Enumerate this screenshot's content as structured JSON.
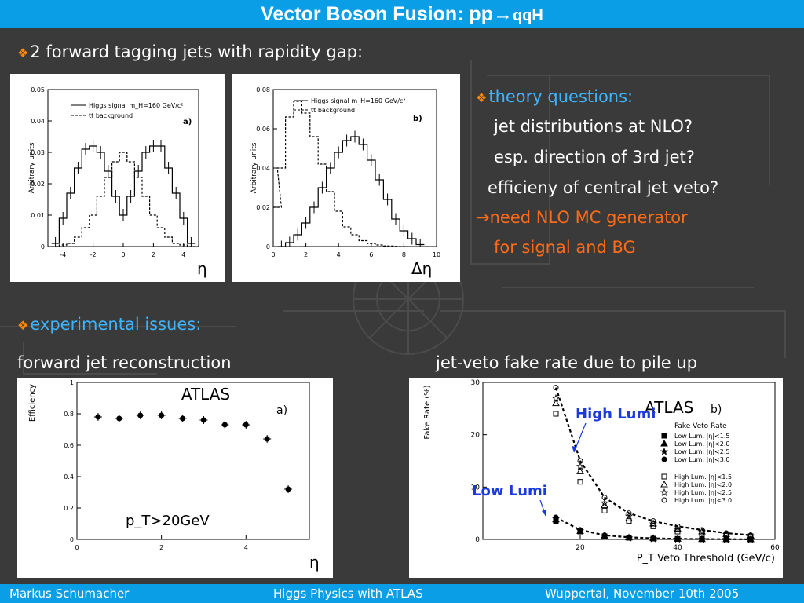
{
  "slide": {
    "title_main": "Vector Boson Fusion: pp",
    "title_arrow": "→",
    "title_suffix": "qqH",
    "bullet_1": "2 forward tagging jets with rapidity gap:",
    "theory": {
      "heading": "theory questions:",
      "lines": [
        "jet distributions at NLO?",
        "esp. direction of 3rd jet?",
        "efficieny of central jet veto?"
      ],
      "arrow": "→",
      "need_line_1": "need NLO MC generator",
      "need_line_2": "for signal and BG"
    },
    "experimental": {
      "heading": "experimental issues:",
      "left_caption": "forward jet reconstruction",
      "right_caption": "jet-veto fake rate due to pile up"
    },
    "footer": {
      "author": "Markus  Schumacher",
      "talk": "Higgs Physics  with ATLAS",
      "place_date": "Wuppertal, November 10th 2005"
    },
    "colors": {
      "title_bar": "#0a9ee6",
      "heading_blue": "#3cb4ff",
      "highlight_orange": "#ff6a18",
      "background": "#3a3a3a"
    }
  },
  "chart_data": [
    {
      "type": "line",
      "panel_label": "a)",
      "legend": [
        "Higgs signal m_H=160 GeV/c²",
        "tt background"
      ],
      "xlabel": "η",
      "ylabel": "Arbitrary units",
      "xlim": [
        -5,
        5
      ],
      "ylim": [
        0,
        0.05
      ],
      "x_ticks": [
        "-4",
        "-2",
        "0",
        "2",
        "4"
      ],
      "y_ticks": [
        "0",
        "0.01",
        "0.02",
        "0.03",
        "0.04",
        "0.05"
      ],
      "series": [
        {
          "name": "Higgs signal m_H=160 GeV/c²",
          "style": "solid",
          "x": [
            -4.5,
            -4.0,
            -3.5,
            -3.0,
            -2.5,
            -2.0,
            -1.5,
            -1.0,
            -0.5,
            0.0,
            0.5,
            1.0,
            1.5,
            2.0,
            2.5,
            3.0,
            3.5,
            4.0,
            4.5
          ],
          "y": [
            0.001,
            0.009,
            0.017,
            0.025,
            0.031,
            0.032,
            0.03,
            0.024,
            0.016,
            0.01,
            0.016,
            0.024,
            0.03,
            0.032,
            0.032,
            0.025,
            0.017,
            0.009,
            0.001
          ]
        },
        {
          "name": "tt background",
          "style": "dashed",
          "x": [
            -4.5,
            -4.0,
            -3.5,
            -3.0,
            -2.5,
            -2.0,
            -1.5,
            -1.0,
            -0.5,
            0.0,
            0.5,
            1.0,
            1.5,
            2.0,
            2.5,
            3.0,
            3.5,
            4.0,
            4.5
          ],
          "y": [
            0.0,
            0.0005,
            0.001,
            0.003,
            0.006,
            0.01,
            0.016,
            0.022,
            0.027,
            0.03,
            0.027,
            0.022,
            0.016,
            0.01,
            0.006,
            0.003,
            0.001,
            0.0005,
            0.0
          ]
        }
      ]
    },
    {
      "type": "line",
      "panel_label": "b)",
      "legend": [
        "Higgs signal m_H=160 GeV/c²",
        "tt background"
      ],
      "xlabel": "Δη",
      "ylabel": "Arbitrary units",
      "xlim": [
        0,
        10
      ],
      "ylim": [
        0,
        0.08
      ],
      "x_ticks": [
        "0",
        "2",
        "4",
        "6",
        "8",
        "10"
      ],
      "y_ticks": [
        "0",
        "0.02",
        "0.04",
        "0.06",
        "0.08"
      ],
      "series": [
        {
          "name": "Higgs signal m_H=160 GeV/c²",
          "style": "solid",
          "x": [
            0.5,
            1.0,
            1.5,
            2.0,
            2.5,
            3.0,
            3.5,
            4.0,
            4.5,
            5.0,
            5.5,
            6.0,
            6.5,
            7.0,
            7.5,
            8.0,
            8.5,
            9.0
          ],
          "y": [
            0.0,
            0.002,
            0.006,
            0.012,
            0.02,
            0.03,
            0.04,
            0.048,
            0.054,
            0.056,
            0.052,
            0.044,
            0.034,
            0.024,
            0.014,
            0.008,
            0.004,
            0.001
          ]
        },
        {
          "name": "tt background",
          "style": "dashed",
          "x": [
            0.25,
            0.5,
            1.0,
            1.5,
            2.0,
            2.5,
            3.0,
            3.5,
            4.0,
            4.5,
            5.0,
            5.5,
            6.0,
            6.5,
            7.0,
            8.0
          ],
          "y": [
            0.02,
            0.04,
            0.066,
            0.074,
            0.068,
            0.056,
            0.042,
            0.028,
            0.018,
            0.01,
            0.006,
            0.003,
            0.0015,
            0.0008,
            0.0003,
            0.0
          ]
        }
      ]
    },
    {
      "type": "scatter",
      "title": "ATLAS",
      "panel_label": "a)",
      "annotation": "p_T>20GeV",
      "xlabel": "η",
      "ylabel": "Efficiency",
      "xlim": [
        0,
        5.5
      ],
      "ylim": [
        0,
        1
      ],
      "x_ticks": [
        "0",
        "2",
        "4"
      ],
      "y_ticks": [
        "0",
        "0.2",
        "0.4",
        "0.6",
        "0.8",
        "1"
      ],
      "series": [
        {
          "name": "efficiency",
          "x": [
            0.5,
            1.0,
            1.5,
            2.0,
            2.5,
            3.0,
            3.5,
            4.0,
            4.5,
            5.0
          ],
          "y": [
            0.78,
            0.77,
            0.79,
            0.79,
            0.77,
            0.76,
            0.73,
            0.73,
            0.64,
            0.32
          ]
        }
      ]
    },
    {
      "type": "line",
      "title": "ATLAS",
      "panel_label": "b)",
      "legend_title": "Fake Veto Rate",
      "xlabel": "P_T Veto Threshold (GeV/c)",
      "ylabel": "Fake Rate (%)",
      "xlim": [
        0,
        60
      ],
      "ylim": [
        0,
        30
      ],
      "x_ticks": [
        "20",
        "40",
        "60"
      ],
      "y_ticks": [
        "0",
        "10",
        "20",
        "30"
      ],
      "annotations": [
        "High Lumi",
        "Low Lumi"
      ],
      "series": [
        {
          "name": "Low Lum. |η|<1.5",
          "marker": "filled-square",
          "x": [
            15,
            20,
            25,
            30,
            35,
            40,
            45,
            50,
            55
          ],
          "y": [
            3.5,
            1.5,
            0.6,
            0.3,
            0.15,
            0.1,
            0.05,
            0.03,
            0.02
          ]
        },
        {
          "name": "Low Lum. |η|<2.0",
          "marker": "filled-triangle",
          "x": [
            15,
            20,
            25,
            30,
            35,
            40,
            45,
            50,
            55
          ],
          "y": [
            3.8,
            1.6,
            0.7,
            0.35,
            0.2,
            0.1,
            0.06,
            0.04,
            0.02
          ]
        },
        {
          "name": "Low Lum. |η|<2.5",
          "marker": "filled-star",
          "x": [
            15,
            20,
            25,
            30,
            35,
            40,
            45,
            50,
            55
          ],
          "y": [
            4.0,
            1.7,
            0.7,
            0.35,
            0.2,
            0.1,
            0.06,
            0.04,
            0.02
          ]
        },
        {
          "name": "Low Lum. |η|<3.0",
          "marker": "filled-circle",
          "x": [
            15,
            20,
            25,
            30,
            35,
            40,
            45,
            50,
            55
          ],
          "y": [
            4.2,
            1.8,
            0.8,
            0.4,
            0.2,
            0.1,
            0.06,
            0.04,
            0.02
          ]
        },
        {
          "name": "High Lum. |η|<1.5",
          "marker": "open-square",
          "x": [
            15,
            20,
            25,
            30,
            35,
            40,
            45,
            50,
            55
          ],
          "y": [
            24.0,
            11.0,
            5.5,
            3.5,
            2.5,
            1.5,
            1.0,
            0.8,
            0.6
          ]
        },
        {
          "name": "High Lum. |η|<2.0",
          "marker": "open-triangle",
          "x": [
            15,
            20,
            25,
            30,
            35,
            40,
            45,
            50,
            55
          ],
          "y": [
            26.0,
            13.0,
            6.5,
            4.0,
            3.0,
            2.0,
            1.5,
            1.0,
            0.7
          ]
        },
        {
          "name": "High Lum. |η|<2.5",
          "marker": "open-star",
          "x": [
            15,
            20,
            25,
            30,
            35,
            40,
            45,
            50,
            55
          ],
          "y": [
            27.0,
            14.0,
            7.0,
            4.5,
            3.0,
            2.0,
            1.5,
            1.0,
            0.7
          ]
        },
        {
          "name": "High Lum. |η|<3.0",
          "marker": "open-circle",
          "x": [
            15,
            20,
            25,
            30,
            35,
            40,
            45,
            50,
            55
          ],
          "y": [
            29.0,
            15.0,
            8.0,
            5.0,
            3.5,
            2.5,
            1.8,
            1.2,
            0.8
          ]
        }
      ]
    }
  ]
}
